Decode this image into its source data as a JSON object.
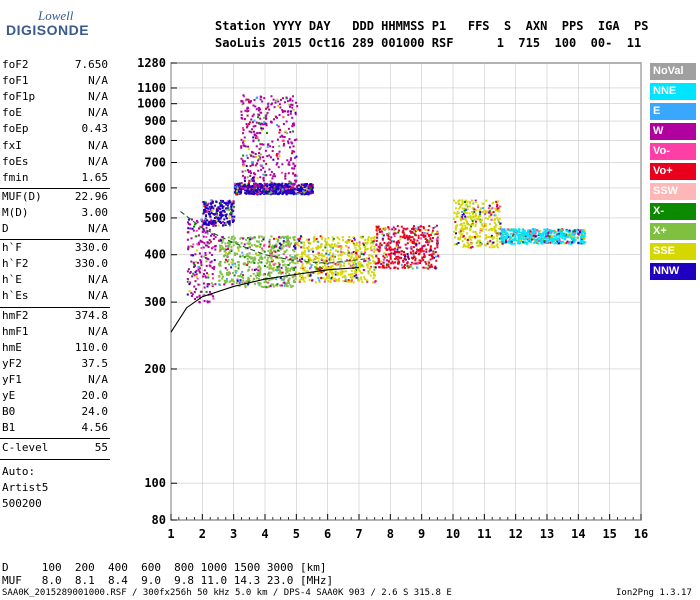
{
  "logo": {
    "line1": "Lowell",
    "line2": "DIGISONDE"
  },
  "header": {
    "line1": "Station YYYY DAY   DDD HHMMSS P1   FFS  S  AXN  PPS  IGA  PS",
    "line2": "SaoLuis 2015 Oct16 289 001000 RSF      1  715  100  00-  11"
  },
  "params_group1": [
    {
      "name": "foF2",
      "value": "7.650"
    },
    {
      "name": "foF1",
      "value": "N/A"
    },
    {
      "name": "foF1p",
      "value": "N/A"
    },
    {
      "name": "foE",
      "value": "N/A"
    },
    {
      "name": "foEp",
      "value": "0.43"
    },
    {
      "name": "fxI",
      "value": "N/A"
    },
    {
      "name": "foEs",
      "value": "N/A"
    },
    {
      "name": "fmin",
      "value": "1.65"
    }
  ],
  "params_group2": [
    {
      "name": "MUF(D)",
      "value": "22.96"
    },
    {
      "name": "M(D)",
      "value": "3.00"
    },
    {
      "name": "D",
      "value": "N/A"
    }
  ],
  "params_group3": [
    {
      "name": "h`F",
      "value": "330.0"
    },
    {
      "name": "h`F2",
      "value": "330.0"
    },
    {
      "name": "h`E",
      "value": "N/A"
    },
    {
      "name": "h`Es",
      "value": "N/A"
    }
  ],
  "params_group4": [
    {
      "name": "hmF2",
      "value": "374.8"
    },
    {
      "name": "hmF1",
      "value": "N/A"
    },
    {
      "name": "hmE",
      "value": "110.0"
    },
    {
      "name": "yF2",
      "value": "37.5"
    },
    {
      "name": "yF1",
      "value": "N/A"
    },
    {
      "name": "yE",
      "value": "20.0"
    },
    {
      "name": "B0",
      "value": "24.0"
    },
    {
      "name": "B1",
      "value": "4.56"
    }
  ],
  "clevel": {
    "name": "C-level",
    "value": "55"
  },
  "auto": {
    "line1": "Auto:",
    "line2": "Artist5",
    "line3": "500200"
  },
  "legend": [
    {
      "label": "NoVal",
      "color": "#a0a0a0"
    },
    {
      "label": "NNE",
      "color": "#00e5ff"
    },
    {
      "label": "E",
      "color": "#3aa7ff"
    },
    {
      "label": "W",
      "color": "#b000a0"
    },
    {
      "label": "Vo-",
      "color": "#ff3fa6"
    },
    {
      "label": "Vo+",
      "color": "#e8001c"
    },
    {
      "label": "SSW",
      "color": "#ffb6b6"
    },
    {
      "label": "X-",
      "color": "#0b8a00"
    },
    {
      "label": "X+",
      "color": "#7fc040"
    },
    {
      "label": "SSE",
      "color": "#d6d600"
    },
    {
      "label": "NNW",
      "color": "#2000c0"
    }
  ],
  "footer": {
    "d_row": "D     100  200  400  600  800 1000 1500 3000 [km]",
    "muf_row": "MUF   8.0  8.1  8.4  9.0  9.8 11.0 14.3 23.0 [MHz]",
    "file_line": "SAA0K_2015289001000.RSF / 300fx256h 50 kHz 5.0 km / DPS-4 SAA0K 903 / 2.6 S 315.8 E",
    "version": "Ion2Png 1.3.17"
  },
  "chart_data": {
    "type": "scatter",
    "title": "",
    "xlabel": "",
    "ylabel": "",
    "xlim": [
      1,
      16
    ],
    "ylim": [
      80,
      1280
    ],
    "y_scale": "log",
    "x_ticks": [
      1,
      2,
      3,
      4,
      5,
      6,
      7,
      8,
      9,
      10,
      11,
      12,
      13,
      14,
      15,
      16
    ],
    "y_ticks": [
      80,
      100,
      200,
      300,
      400,
      500,
      600,
      700,
      800,
      900,
      1000,
      1100,
      1280
    ],
    "grid": true,
    "legend_position": "right",
    "echo_clusters": [
      {
        "x": [
          1.5,
          2.4
        ],
        "y": [
          300,
          500
        ],
        "class": "W"
      },
      {
        "x": [
          2.0,
          3.0
        ],
        "y": [
          480,
          560
        ],
        "class": "NNW"
      },
      {
        "x": [
          2.5,
          5.0
        ],
        "y": [
          330,
          450
        ],
        "class": "X+"
      },
      {
        "x": [
          3.0,
          5.5
        ],
        "y": [
          580,
          620
        ],
        "class": "NNW"
      },
      {
        "x": [
          3.2,
          5.0
        ],
        "y": [
          600,
          1060
        ],
        "class": "W"
      },
      {
        "x": [
          5.0,
          7.5
        ],
        "y": [
          340,
          450
        ],
        "class": "SSE"
      },
      {
        "x": [
          7.5,
          9.5
        ],
        "y": [
          370,
          480
        ],
        "class": "Vo+"
      },
      {
        "x": [
          10.0,
          11.5
        ],
        "y": [
          420,
          560
        ],
        "class": "SSE"
      },
      {
        "x": [
          11.5,
          14.2
        ],
        "y": [
          430,
          470
        ],
        "class": "NNE"
      }
    ],
    "trace_lines": [
      {
        "name": "",
        "x": [
          1.0,
          1.5,
          2.0,
          3.0,
          4.0,
          5.0,
          6.0,
          7.0
        ],
        "y": [
          250,
          290,
          310,
          330,
          345,
          355,
          365,
          370
        ]
      },
      {
        "name": "",
        "x": [
          1.3,
          2.0,
          3.0,
          4.0,
          5.0,
          6.0,
          7.2
        ],
        "y": [
          520,
          470,
          430,
          400,
          385,
          380,
          390
        ]
      }
    ]
  }
}
